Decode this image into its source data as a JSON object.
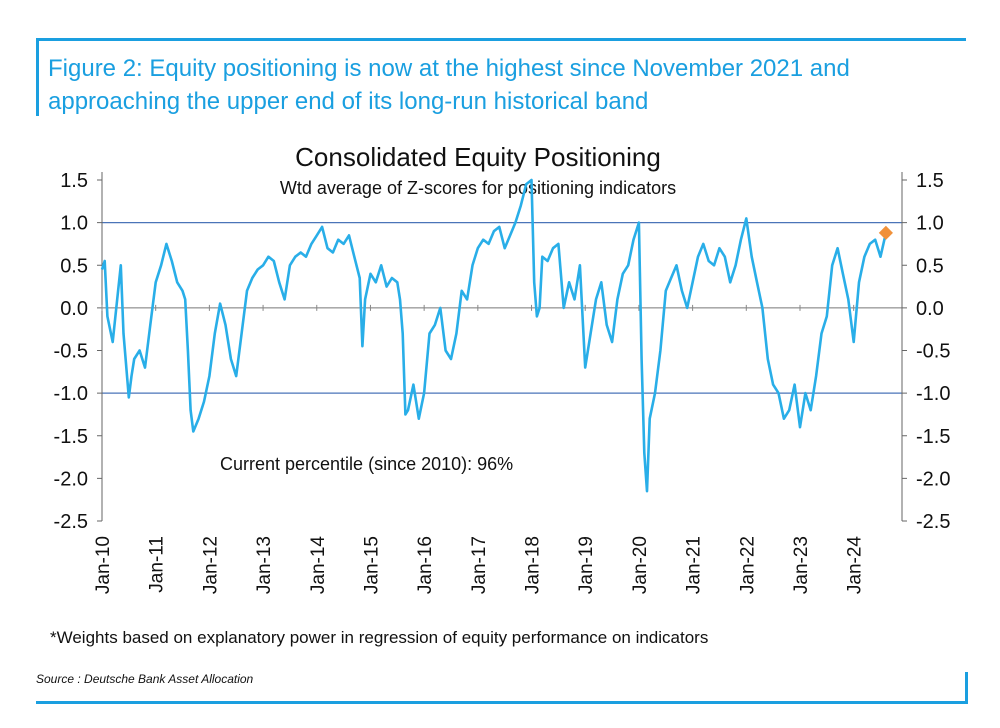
{
  "figure": {
    "title": "Figure 2: Equity positioning is now at the highest since November 2021 and approaching the upper end of its long-run historical band",
    "footnote": "*Weights based on explanatory power in regression of equity performance on indicators",
    "source": "Source : Deutsche Bank Asset Allocation"
  },
  "colors": {
    "accent": "#1a9fe0",
    "series": "#29aee8",
    "band_line": "#4a74b8",
    "current_marker": "#f0913a"
  },
  "chart_data": {
    "type": "line",
    "title": "Consolidated Equity Positioning",
    "subtitle": "Wtd average of Z-scores for positioning indicators",
    "annotation": "Current percentile (since 2010): 96%",
    "ylim": [
      -2.5,
      1.5
    ],
    "yticks": [
      "1.5",
      "1.0",
      "0.5",
      "0.0",
      "-0.5",
      "-1.0",
      "-1.5",
      "-2.0",
      "-2.5"
    ],
    "ytick_values": [
      1.5,
      1.0,
      0.5,
      0.0,
      -0.5,
      -1.0,
      -1.5,
      -2.0,
      -2.5
    ],
    "xlim": [
      2010.0,
      2024.9
    ],
    "xticks": [
      "Jan-10",
      "Jan-11",
      "Jan-12",
      "Jan-13",
      "Jan-14",
      "Jan-15",
      "Jan-16",
      "Jan-17",
      "Jan-18",
      "Jan-19",
      "Jan-20",
      "Jan-21",
      "Jan-22",
      "Jan-23",
      "Jan-24"
    ],
    "xtick_values": [
      2010,
      2011,
      2012,
      2013,
      2014,
      2015,
      2016,
      2017,
      2018,
      2019,
      2020,
      2021,
      2022,
      2023,
      2024
    ],
    "reference_lines": [
      1.0,
      -1.0,
      0.0
    ],
    "current_point": {
      "x": 2024.6,
      "y": 0.88
    },
    "series": [
      {
        "name": "Consolidated Equity Positioning",
        "x": [
          2010.0,
          2010.05,
          2010.1,
          2010.2,
          2010.3,
          2010.35,
          2010.4,
          2010.5,
          2010.55,
          2010.6,
          2010.7,
          2010.8,
          2010.9,
          2011.0,
          2011.1,
          2011.2,
          2011.3,
          2011.4,
          2011.5,
          2011.55,
          2011.6,
          2011.65,
          2011.7,
          2011.8,
          2011.9,
          2012.0,
          2012.1,
          2012.2,
          2012.3,
          2012.4,
          2012.5,
          2012.6,
          2012.7,
          2012.8,
          2012.9,
          2013.0,
          2013.1,
          2013.2,
          2013.3,
          2013.4,
          2013.5,
          2013.6,
          2013.7,
          2013.8,
          2013.9,
          2014.0,
          2014.1,
          2014.2,
          2014.3,
          2014.4,
          2014.5,
          2014.6,
          2014.7,
          2014.8,
          2014.85,
          2014.9,
          2015.0,
          2015.1,
          2015.2,
          2015.3,
          2015.4,
          2015.5,
          2015.55,
          2015.6,
          2015.65,
          2015.7,
          2015.8,
          2015.9,
          2016.0,
          2016.1,
          2016.2,
          2016.3,
          2016.4,
          2016.5,
          2016.6,
          2016.7,
          2016.8,
          2016.9,
          2017.0,
          2017.1,
          2017.2,
          2017.3,
          2017.4,
          2017.5,
          2017.6,
          2017.7,
          2017.8,
          2017.9,
          2018.0,
          2018.05,
          2018.1,
          2018.15,
          2018.2,
          2018.3,
          2018.4,
          2018.5,
          2018.6,
          2018.7,
          2018.8,
          2018.9,
          2019.0,
          2019.1,
          2019.2,
          2019.3,
          2019.4,
          2019.5,
          2019.6,
          2019.7,
          2019.8,
          2019.9,
          2020.0,
          2020.05,
          2020.1,
          2020.15,
          2020.2,
          2020.3,
          2020.4,
          2020.5,
          2020.6,
          2020.7,
          2020.8,
          2020.9,
          2021.0,
          2021.1,
          2021.2,
          2021.3,
          2021.4,
          2021.5,
          2021.6,
          2021.7,
          2021.8,
          2021.9,
          2022.0,
          2022.1,
          2022.2,
          2022.3,
          2022.4,
          2022.5,
          2022.6,
          2022.7,
          2022.8,
          2022.9,
          2023.0,
          2023.1,
          2023.2,
          2023.3,
          2023.4,
          2023.5,
          2023.6,
          2023.7,
          2023.8,
          2023.9,
          2024.0,
          2024.1,
          2024.2,
          2024.3,
          2024.4,
          2024.5,
          2024.6
        ],
        "values": [
          0.45,
          0.55,
          -0.1,
          -0.4,
          0.2,
          0.5,
          -0.3,
          -1.05,
          -0.8,
          -0.6,
          -0.5,
          -0.7,
          -0.2,
          0.3,
          0.5,
          0.75,
          0.55,
          0.3,
          0.2,
          0.1,
          -0.5,
          -1.2,
          -1.45,
          -1.3,
          -1.1,
          -0.8,
          -0.3,
          0.05,
          -0.2,
          -0.6,
          -0.8,
          -0.3,
          0.2,
          0.35,
          0.45,
          0.5,
          0.6,
          0.55,
          0.3,
          0.1,
          0.5,
          0.6,
          0.65,
          0.6,
          0.75,
          0.85,
          0.95,
          0.7,
          0.65,
          0.8,
          0.75,
          0.85,
          0.6,
          0.35,
          -0.45,
          0.1,
          0.4,
          0.3,
          0.5,
          0.25,
          0.35,
          0.3,
          0.1,
          -0.3,
          -1.25,
          -1.2,
          -0.9,
          -1.3,
          -1.0,
          -0.3,
          -0.2,
          0.0,
          -0.5,
          -0.6,
          -0.3,
          0.2,
          0.1,
          0.5,
          0.7,
          0.8,
          0.75,
          0.9,
          0.95,
          0.7,
          0.85,
          1.0,
          1.2,
          1.45,
          1.5,
          0.3,
          -0.1,
          0.0,
          0.6,
          0.55,
          0.7,
          0.75,
          0.0,
          0.3,
          0.1,
          0.5,
          -0.7,
          -0.3,
          0.1,
          0.3,
          -0.2,
          -0.4,
          0.1,
          0.4,
          0.5,
          0.8,
          1.0,
          -0.6,
          -1.7,
          -2.15,
          -1.3,
          -1.0,
          -0.5,
          0.2,
          0.35,
          0.5,
          0.2,
          0.0,
          0.3,
          0.6,
          0.75,
          0.55,
          0.5,
          0.7,
          0.6,
          0.3,
          0.5,
          0.8,
          1.05,
          0.6,
          0.3,
          0.0,
          -0.6,
          -0.9,
          -1.0,
          -1.3,
          -1.2,
          -0.9,
          -1.4,
          -1.0,
          -1.2,
          -0.8,
          -0.3,
          -0.1,
          0.5,
          0.7,
          0.4,
          0.1,
          -0.4,
          0.3,
          0.6,
          0.75,
          0.8,
          0.6,
          0.88
        ]
      }
    ]
  }
}
